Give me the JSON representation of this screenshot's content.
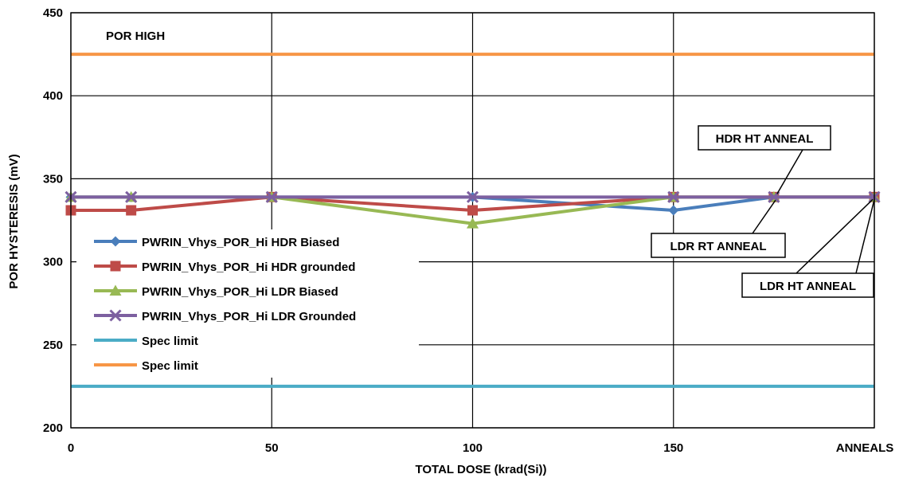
{
  "chart_data": {
    "type": "line",
    "title": "",
    "xlabel": "TOTAL DOSE (krad(Si))",
    "ylabel": "POR HYSTERESIS (mV)",
    "ylim": [
      200,
      450
    ],
    "xlim": [
      0,
      200
    ],
    "yticks": [
      200,
      250,
      300,
      350,
      400,
      450
    ],
    "xticks": [
      {
        "value": 0,
        "label": "0"
      },
      {
        "value": 50,
        "label": "50"
      },
      {
        "value": 100,
        "label": "100"
      },
      {
        "value": 150,
        "label": "150"
      },
      {
        "value": 200,
        "label": "ANNEALS"
      }
    ],
    "grid": true,
    "legend_position": "left",
    "x": [
      0,
      15,
      50,
      100,
      150,
      175,
      200
    ],
    "series": [
      {
        "name": "PWRIN_Vhys_POR_Hi HDR Biased",
        "color": "#4a7ebb",
        "marker": "diamond",
        "values": [
          339,
          339,
          339,
          339,
          331,
          339,
          339
        ]
      },
      {
        "name": "PWRIN_Vhys_POR_Hi HDR grounded",
        "color": "#be4b48",
        "marker": "square",
        "values": [
          331,
          331,
          339,
          331,
          339,
          339,
          339
        ]
      },
      {
        "name": "PWRIN_Vhys_POR_Hi LDR Biased",
        "color": "#98b954",
        "marker": "triangle",
        "values": [
          339,
          339,
          339,
          323,
          339,
          339,
          339
        ]
      },
      {
        "name": "PWRIN_Vhys_POR_Hi LDR Grounded",
        "color": "#7d60a0",
        "marker": "x",
        "values": [
          339,
          339,
          339,
          339,
          339,
          339,
          339
        ]
      }
    ],
    "spec_limits": [
      {
        "name": "Spec limit",
        "color": "#4bacc6",
        "value": 225
      },
      {
        "name": "Spec limit",
        "color": "#f79646",
        "value": 425
      }
    ],
    "annotations": [
      {
        "text": "POR HIGH",
        "kind": "plain"
      },
      {
        "text": "HDR HT ANNEAL",
        "kind": "box",
        "target_x": 175,
        "target_y": 339
      },
      {
        "text": "LDR RT ANNEAL",
        "kind": "box",
        "target_x": 175,
        "target_y": 339
      },
      {
        "text": "LDR HT ANNEAL",
        "kind": "box",
        "target_x": 200,
        "target_y": 339
      }
    ]
  }
}
